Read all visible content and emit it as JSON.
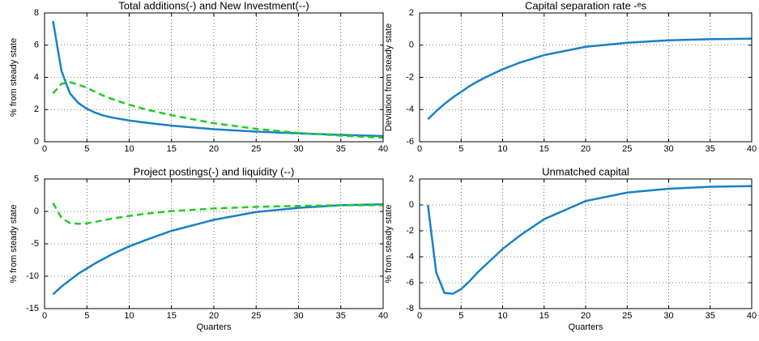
{
  "chart_data": [
    {
      "type": "line",
      "title": "Total additions(-) and New Investment(--)",
      "ylabel": "% from steady state",
      "x": [
        1,
        2,
        3,
        4,
        5,
        6,
        7,
        8,
        10,
        12,
        15,
        20,
        25,
        30,
        35,
        40
      ],
      "series": [
        {
          "color": "#1a80c4",
          "style": "solid",
          "values": [
            7.5,
            4.4,
            3.0,
            2.4,
            2.05,
            1.8,
            1.62,
            1.5,
            1.32,
            1.18,
            1.0,
            0.78,
            0.63,
            0.52,
            0.43,
            0.35
          ]
        },
        {
          "color": "#22cc22",
          "style": "dashed",
          "values": [
            3.0,
            3.6,
            3.7,
            3.55,
            3.35,
            3.1,
            2.85,
            2.65,
            2.3,
            2.0,
            1.65,
            1.15,
            0.8,
            0.55,
            0.38,
            0.25
          ]
        }
      ],
      "xlim": [
        0,
        40
      ],
      "xticks": [
        0,
        5,
        10,
        15,
        20,
        25,
        30,
        35,
        40
      ],
      "ylim": [
        0,
        8
      ],
      "yticks": [
        0,
        2,
        4,
        6,
        8
      ],
      "grid": true
    },
    {
      "type": "line",
      "title": "Capital separation rate -ᵉs",
      "ylabel": "Deviation from steady state",
      "x": [
        1,
        2,
        3,
        4,
        5,
        6,
        7,
        8,
        10,
        12,
        15,
        20,
        25,
        30,
        35,
        40
      ],
      "series": [
        {
          "color": "#1a80c4",
          "style": "solid",
          "values": [
            -4.6,
            -4.1,
            -3.65,
            -3.25,
            -2.9,
            -2.55,
            -2.25,
            -1.98,
            -1.5,
            -1.1,
            -0.62,
            -0.1,
            0.15,
            0.3,
            0.37,
            0.4
          ]
        }
      ],
      "xlim": [
        0,
        40
      ],
      "xticks": [
        0,
        5,
        10,
        15,
        20,
        25,
        30,
        35,
        40
      ],
      "ylim": [
        -6,
        2
      ],
      "yticks": [
        -6,
        -4,
        -2,
        0,
        2
      ],
      "grid": true
    },
    {
      "type": "line",
      "title": "Project postings(-) and liquidity (--)",
      "ylabel": "% from steady state",
      "xlabel": "Quarters",
      "x": [
        1,
        2,
        3,
        4,
        5,
        6,
        7,
        8,
        10,
        12,
        15,
        20,
        25,
        30,
        35,
        40
      ],
      "series": [
        {
          "color": "#1a80c4",
          "style": "solid",
          "values": [
            -12.8,
            -11.6,
            -10.6,
            -9.6,
            -8.8,
            -8.0,
            -7.3,
            -6.6,
            -5.4,
            -4.4,
            -3.0,
            -1.3,
            -0.1,
            0.55,
            0.95,
            1.1
          ]
        },
        {
          "color": "#22cc22",
          "style": "dashed",
          "values": [
            1.3,
            -1.0,
            -1.8,
            -1.9,
            -1.85,
            -1.6,
            -1.35,
            -1.1,
            -0.7,
            -0.35,
            0.05,
            0.45,
            0.7,
            0.85,
            0.95,
            0.95
          ]
        }
      ],
      "xlim": [
        0,
        40
      ],
      "xticks": [
        0,
        5,
        10,
        15,
        20,
        25,
        30,
        35,
        40
      ],
      "ylim": [
        -15,
        5
      ],
      "yticks": [
        -15,
        -10,
        -5,
        0,
        5
      ],
      "grid": true
    },
    {
      "type": "line",
      "title": "Unmatched capital",
      "ylabel": "% from steady state",
      "xlabel": "Quarters",
      "x": [
        1,
        2,
        3,
        4,
        5,
        6,
        7,
        8,
        10,
        12,
        15,
        20,
        25,
        30,
        35,
        40
      ],
      "series": [
        {
          "color": "#1a80c4",
          "style": "solid",
          "values": [
            0,
            -5.2,
            -6.8,
            -6.85,
            -6.5,
            -5.9,
            -5.2,
            -4.6,
            -3.4,
            -2.4,
            -1.1,
            0.3,
            0.95,
            1.25,
            1.4,
            1.45
          ]
        }
      ],
      "xlim": [
        0,
        40
      ],
      "xticks": [
        0,
        5,
        10,
        15,
        20,
        25,
        30,
        35,
        40
      ],
      "ylim": [
        -8,
        2
      ],
      "yticks": [
        -8,
        -6,
        -4,
        -2,
        0,
        2
      ],
      "grid": true
    }
  ]
}
